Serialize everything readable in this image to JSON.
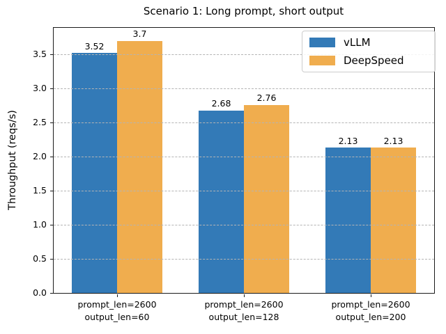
{
  "chart_data": {
    "type": "bar",
    "title": "Scenario 1: Long prompt, short output",
    "ylabel": "Throughput (reqs/s)",
    "xlabel": "",
    "categories": [
      "prompt_len=2600\noutput_len=60",
      "prompt_len=2600\noutput_len=128",
      "prompt_len=2600\noutput_len=200"
    ],
    "series": [
      {
        "name": "vLLM",
        "color": "#337ab7",
        "values": [
          3.52,
          2.68,
          2.13
        ],
        "labels": [
          "3.52",
          "2.68",
          "2.13"
        ]
      },
      {
        "name": "DeepSpeed",
        "color": "#f0ad4e",
        "values": [
          3.7,
          2.76,
          2.13
        ],
        "labels": [
          "3.7",
          "2.76",
          "2.13"
        ]
      }
    ],
    "ylim": [
      0,
      3.89
    ],
    "yticks": [
      "0.0",
      "0.5",
      "1.0",
      "1.5",
      "2.0",
      "2.5",
      "3.0",
      "3.5"
    ],
    "grid": "horizontal-dashed",
    "grid_color": "#b4b4b4",
    "legend_position": "upper right",
    "bar_value_labels_shown": true
  }
}
